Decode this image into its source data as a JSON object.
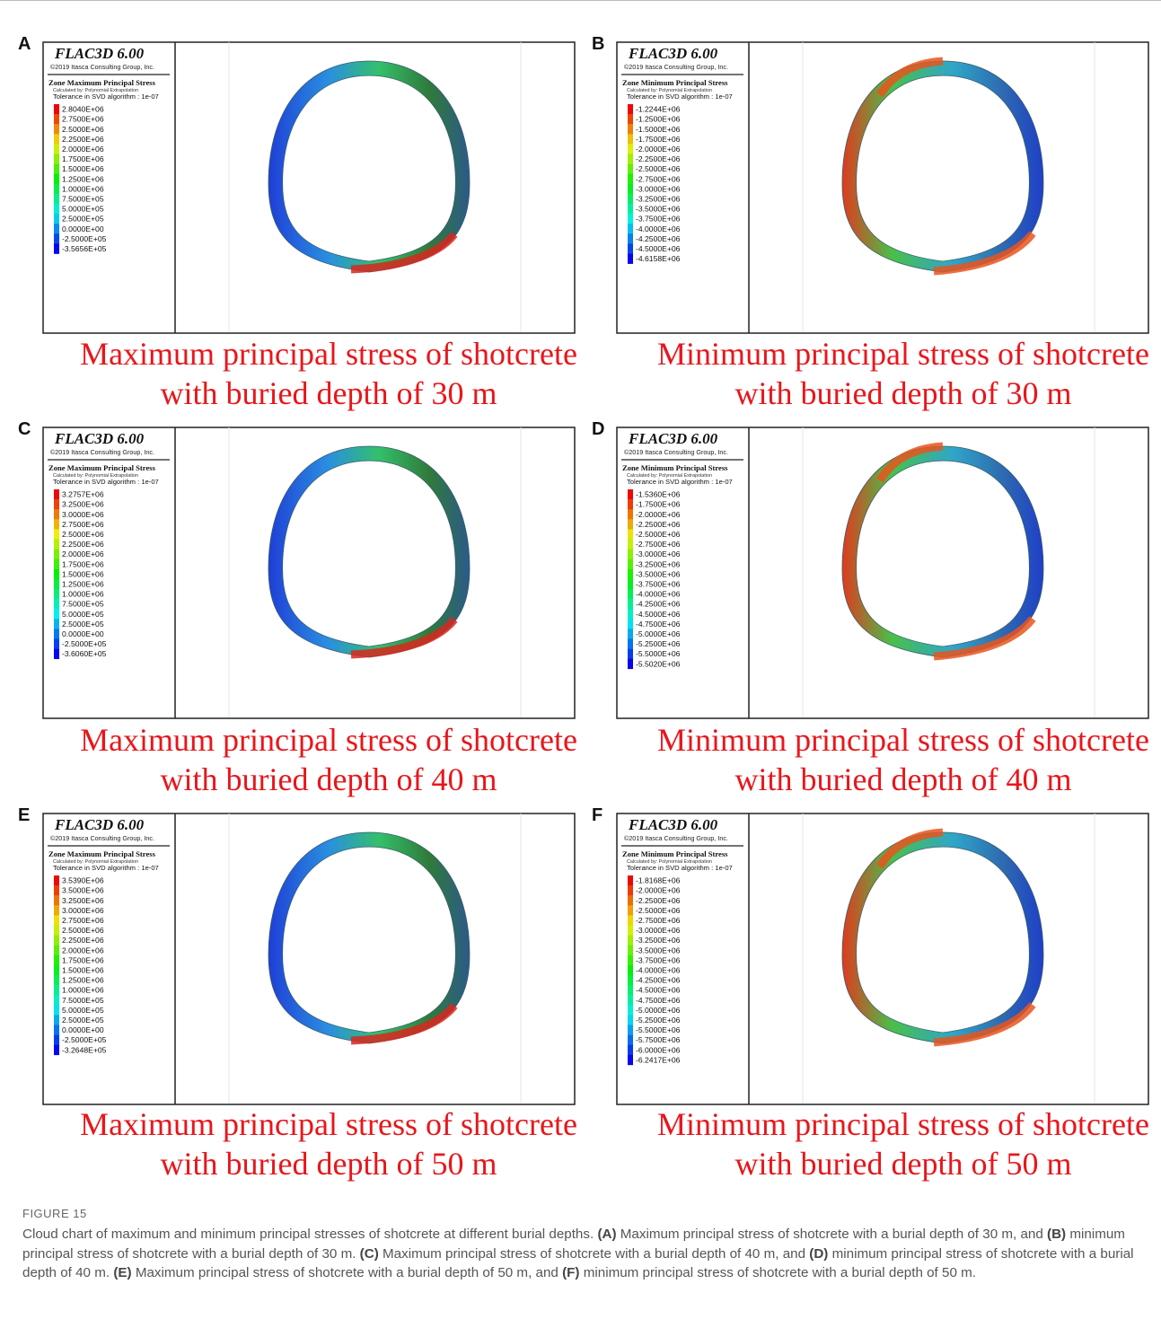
{
  "panels": [
    {
      "label": "A",
      "software": "FLAC3D 6.00",
      "copyright": "©2019 Itasca Consulting Group, Inc.",
      "quantity": "Zone Maximum Principal Stress",
      "method": "Calculated by: Polynomial Extrapolation",
      "tolerance": "Tolerance in SVD algorithm : 1e-07",
      "legend": [
        "2.8040E+06",
        "2.7500E+06",
        "2.5000E+06",
        "2.2500E+06",
        "2.0000E+06",
        "1.7500E+06",
        "1.5000E+06",
        "1.2500E+06",
        "1.0000E+06",
        "7.5000E+05",
        "5.0000E+05",
        "2.5000E+05",
        "0.0000E+00",
        "-2.5000E+05",
        "-3.5656E+05"
      ],
      "caption": [
        "Maximum principal stress of shotcrete",
        "with buried depth of 30 m"
      ]
    },
    {
      "label": "B",
      "software": "FLAC3D 6.00",
      "copyright": "©2019 Itasca Consulting Group, Inc.",
      "quantity": "Zone Minimum Principal Stress",
      "method": "Calculated by: Polynomial Extrapolation",
      "tolerance": "Tolerance in SVD algorithm : 1e-07",
      "legend": [
        "-1.2244E+06",
        "-1.2500E+06",
        "-1.5000E+06",
        "-1.7500E+06",
        "-2.0000E+06",
        "-2.2500E+06",
        "-2.5000E+06",
        "-2.7500E+06",
        "-3.0000E+06",
        "-3.2500E+06",
        "-3.5000E+06",
        "-3.7500E+06",
        "-4.0000E+06",
        "-4.2500E+06",
        "-4.5000E+06",
        "-4.6158E+06"
      ],
      "caption": [
        "Minimum principal stress of shotcrete",
        "with buried depth of 30 m"
      ]
    },
    {
      "label": "C",
      "software": "FLAC3D 6.00",
      "copyright": "©2019 Itasca Consulting Group, Inc.",
      "quantity": "Zone Maximum Principal Stress",
      "method": "Calculated by: Polynomial Extrapolation",
      "tolerance": "Tolerance in SVD algorithm : 1e-07",
      "legend": [
        "3.2757E+06",
        "3.2500E+06",
        "3.0000E+06",
        "2.7500E+06",
        "2.5000E+06",
        "2.2500E+06",
        "2.0000E+06",
        "1.7500E+06",
        "1.5000E+06",
        "1.2500E+06",
        "1.0000E+06",
        "7.5000E+05",
        "5.0000E+05",
        "2.5000E+05",
        "0.0000E+00",
        "-2.5000E+05",
        "-3.6060E+05"
      ],
      "caption": [
        "Maximum principal stress of shotcrete",
        "with buried depth of 40 m"
      ]
    },
    {
      "label": "D",
      "software": "FLAC3D 6.00",
      "copyright": "©2019 Itasca Consulting Group, Inc.",
      "quantity": "Zone Minimum Principal Stress",
      "method": "Calculated by: Polynomial Extrapolation",
      "tolerance": "Tolerance in SVD algorithm : 1e-07",
      "legend": [
        "-1.5360E+06",
        "-1.7500E+06",
        "-2.0000E+06",
        "-2.2500E+06",
        "-2.5000E+06",
        "-2.7500E+06",
        "-3.0000E+06",
        "-3.2500E+06",
        "-3.5000E+06",
        "-3.7500E+06",
        "-4.0000E+06",
        "-4.2500E+06",
        "-4.5000E+06",
        "-4.7500E+06",
        "-5.0000E+06",
        "-5.2500E+06",
        "-5.5000E+06",
        "-5.5020E+06"
      ],
      "caption": [
        "Minimum principal stress of shotcrete",
        "with buried depth of 40 m"
      ]
    },
    {
      "label": "E",
      "software": "FLAC3D 6.00",
      "copyright": "©2019 Itasca Consulting Group, Inc.",
      "quantity": "Zone Maximum Principal Stress",
      "method": "Calculated by: Polynomial Extrapolation",
      "tolerance": "Tolerance in SVD algorithm : 1e-07",
      "legend": [
        "3.5390E+06",
        "3.5000E+06",
        "3.2500E+06",
        "3.0000E+06",
        "2.7500E+06",
        "2.5000E+06",
        "2.2500E+06",
        "2.0000E+06",
        "1.7500E+06",
        "1.5000E+06",
        "1.2500E+06",
        "1.0000E+06",
        "7.5000E+05",
        "5.0000E+05",
        "2.5000E+05",
        "0.0000E+00",
        "-2.5000E+05",
        "-3.2648E+05"
      ],
      "caption": [
        "Maximum principal stress of shotcrete",
        "with buried depth of 50 m"
      ]
    },
    {
      "label": "F",
      "software": "FLAC3D 6.00",
      "copyright": "©2019 Itasca Consulting Group, Inc.",
      "quantity": "Zone Minimum Principal Stress",
      "method": "Calculated by: Polynomial Extrapolation",
      "tolerance": "Tolerance in SVD algorithm : 1e-07",
      "legend": [
        "-1.8168E+06",
        "-2.0000E+06",
        "-2.2500E+06",
        "-2.5000E+06",
        "-2.7500E+06",
        "-3.0000E+06",
        "-3.2500E+06",
        "-3.5000E+06",
        "-3.7500E+06",
        "-4.0000E+06",
        "-4.2500E+06",
        "-4.5000E+06",
        "-4.7500E+06",
        "-5.0000E+06",
        "-5.2500E+06",
        "-5.5000E+06",
        "-5.7500E+06",
        "-6.0000E+06",
        "-6.2417E+06"
      ],
      "caption": [
        "Minimum principal stress of shotcrete",
        "with buried depth of 50 m"
      ]
    }
  ],
  "figure": {
    "label": "FIGURE 15",
    "intro": "Cloud chart of maximum and minimum principal stresses of shotcrete at different burial depths.",
    "items": [
      {
        "label": "(A)",
        "text": "Maximum principal stress of shotcrete with a burial depth of 30 m, and"
      },
      {
        "label": "(B)",
        "text": "minimum principal stress of shotcrete with a burial depth of 30 m."
      },
      {
        "label": "(C)",
        "text": "Maximum principal stress of shotcrete with a burial depth of 40 m, and"
      },
      {
        "label": "(D)",
        "text": "minimum principal stress of shotcrete with a burial depth of 40 m."
      },
      {
        "label": "(E)",
        "text": "Maximum principal stress of shotcrete with a burial depth of 50 m, and"
      },
      {
        "label": "(F)",
        "text": "minimum principal stress of shotcrete with a burial depth of 50 m."
      }
    ]
  }
}
